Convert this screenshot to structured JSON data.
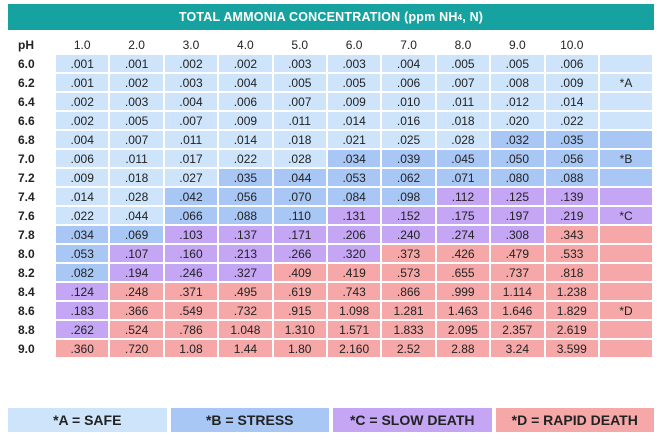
{
  "title": {
    "main": "TOTAL AMMONIA CONCENTRATION (ppm NH",
    "sub": "4",
    "suffix": ", N)"
  },
  "header": {
    "ph_label": "pH",
    "concentrations": [
      "1.0",
      "2.0",
      "3.0",
      "4.0",
      "5.0",
      "6.0",
      "7.0",
      "8.0",
      "9.0",
      "10.0"
    ]
  },
  "rows": [
    {
      "ph": "6.0",
      "values": [
        ".001",
        ".001",
        ".002",
        ".002",
        ".003",
        ".003",
        ".004",
        ".005",
        ".005",
        ".006"
      ],
      "zones": [
        "A",
        "A",
        "A",
        "A",
        "A",
        "A",
        "A",
        "A",
        "A",
        "A"
      ],
      "tag": "",
      "tag_zone": "A"
    },
    {
      "ph": "6.2",
      "values": [
        ".001",
        ".002",
        ".003",
        ".004",
        ".005",
        ".005",
        ".006",
        ".007",
        ".008",
        ".009"
      ],
      "zones": [
        "A",
        "A",
        "A",
        "A",
        "A",
        "A",
        "A",
        "A",
        "A",
        "A"
      ],
      "tag": "*A",
      "tag_zone": "A"
    },
    {
      "ph": "6.4",
      "values": [
        ".002",
        ".003",
        ".004",
        ".006",
        ".007",
        ".009",
        ".010",
        ".011",
        ".012",
        ".014"
      ],
      "zones": [
        "A",
        "A",
        "A",
        "A",
        "A",
        "A",
        "A",
        "A",
        "A",
        "A"
      ],
      "tag": "",
      "tag_zone": "A"
    },
    {
      "ph": "6.6",
      "values": [
        ".002",
        ".005",
        ".007",
        ".009",
        ".011",
        ".014",
        ".016",
        ".018",
        ".020",
        ".022"
      ],
      "zones": [
        "A",
        "A",
        "A",
        "A",
        "A",
        "A",
        "A",
        "A",
        "A",
        "A"
      ],
      "tag": "",
      "tag_zone": "A"
    },
    {
      "ph": "6.8",
      "values": [
        ".004",
        ".007",
        ".011",
        ".014",
        ".018",
        ".021",
        ".025",
        ".028",
        ".032",
        ".035"
      ],
      "zones": [
        "A",
        "A",
        "A",
        "A",
        "A",
        "A",
        "A",
        "A",
        "B",
        "B"
      ],
      "tag": "",
      "tag_zone": "B"
    },
    {
      "ph": "7.0",
      "values": [
        ".006",
        ".011",
        ".017",
        ".022",
        ".028",
        ".034",
        ".039",
        ".045",
        ".050",
        ".056"
      ],
      "zones": [
        "A",
        "A",
        "A",
        "A",
        "A",
        "B",
        "B",
        "B",
        "B",
        "B"
      ],
      "tag": "*B",
      "tag_zone": "B"
    },
    {
      "ph": "7.2",
      "values": [
        ".009",
        ".018",
        ".027",
        ".035",
        ".044",
        ".053",
        ".062",
        ".071",
        ".080",
        ".088"
      ],
      "zones": [
        "A",
        "A",
        "A",
        "B",
        "B",
        "B",
        "B",
        "B",
        "B",
        "B"
      ],
      "tag": "",
      "tag_zone": "B"
    },
    {
      "ph": "7.4",
      "values": [
        ".014",
        ".028",
        ".042",
        ".056",
        ".070",
        ".084",
        ".098",
        ".112",
        ".125",
        ".139"
      ],
      "zones": [
        "A",
        "A",
        "B",
        "B",
        "B",
        "B",
        "B",
        "C",
        "C",
        "C"
      ],
      "tag": "",
      "tag_zone": "C"
    },
    {
      "ph": "7.6",
      "values": [
        ".022",
        ".044",
        ".066",
        ".088",
        ".110",
        ".131",
        ".152",
        ".175",
        ".197",
        ".219"
      ],
      "zones": [
        "A",
        "A",
        "B",
        "B",
        "B",
        "C",
        "C",
        "C",
        "C",
        "C"
      ],
      "tag": "*C",
      "tag_zone": "C"
    },
    {
      "ph": "7.8",
      "values": [
        ".034",
        ".069",
        ".103",
        ".137",
        ".171",
        ".206",
        ".240",
        ".274",
        ".308",
        ".343"
      ],
      "zones": [
        "B",
        "B",
        "C",
        "C",
        "C",
        "C",
        "C",
        "C",
        "C",
        "D"
      ],
      "tag": "",
      "tag_zone": "D"
    },
    {
      "ph": "8.0",
      "values": [
        ".053",
        ".107",
        ".160",
        ".213",
        ".266",
        ".320",
        ".373",
        ".426",
        ".479",
        ".533"
      ],
      "zones": [
        "B",
        "C",
        "C",
        "C",
        "C",
        "C",
        "D",
        "D",
        "D",
        "D"
      ],
      "tag": "",
      "tag_zone": "D"
    },
    {
      "ph": "8.2",
      "values": [
        ".082",
        ".194",
        ".246",
        ".327",
        ".409",
        ".419",
        ".573",
        ".655",
        ".737",
        ".818"
      ],
      "zones": [
        "B",
        "C",
        "C",
        "C",
        "D",
        "D",
        "D",
        "D",
        "D",
        "D"
      ],
      "tag": "",
      "tag_zone": "D"
    },
    {
      "ph": "8.4",
      "values": [
        ".124",
        ".248",
        ".371",
        ".495",
        ".619",
        ".743",
        ".866",
        ".999",
        "1.114",
        "1.238"
      ],
      "zones": [
        "C",
        "D",
        "D",
        "D",
        "D",
        "D",
        "D",
        "D",
        "D",
        "D"
      ],
      "tag": "",
      "tag_zone": "D"
    },
    {
      "ph": "8.6",
      "values": [
        ".183",
        ".366",
        ".549",
        ".732",
        ".915",
        "1.098",
        "1.281",
        "1.463",
        "1.646",
        "1.829"
      ],
      "zones": [
        "C",
        "D",
        "D",
        "D",
        "D",
        "D",
        "D",
        "D",
        "D",
        "D"
      ],
      "tag": "*D",
      "tag_zone": "D"
    },
    {
      "ph": "8.8",
      "values": [
        ".262",
        ".524",
        ".786",
        "1.048",
        "1.310",
        "1.571",
        "1.833",
        "2.095",
        "2.357",
        "2.619"
      ],
      "zones": [
        "C",
        "D",
        "D",
        "D",
        "D",
        "D",
        "D",
        "D",
        "D",
        "D"
      ],
      "tag": "",
      "tag_zone": "D"
    },
    {
      "ph": "9.0",
      "values": [
        ".360",
        ".720",
        "1.08",
        "1.44",
        "1.80",
        "2.160",
        "2.52",
        "2.88",
        "3.24",
        "3.599"
      ],
      "zones": [
        "D",
        "D",
        "D",
        "D",
        "D",
        "D",
        "D",
        "D",
        "D",
        "D"
      ],
      "tag": "",
      "tag_zone": "D"
    }
  ],
  "legend": {
    "safe": "*A = SAFE",
    "stress": "*B = STRESS",
    "slow_death": "*C = SLOW DEATH",
    "rapid_death": "*D = RAPID DEATH"
  },
  "colors": {
    "header": "#17a2a2",
    "zone_A": "#cde4fb",
    "zone_B": "#a8c7f4",
    "zone_C": "#c4a6f4",
    "zone_D": "#f6a8a8"
  }
}
